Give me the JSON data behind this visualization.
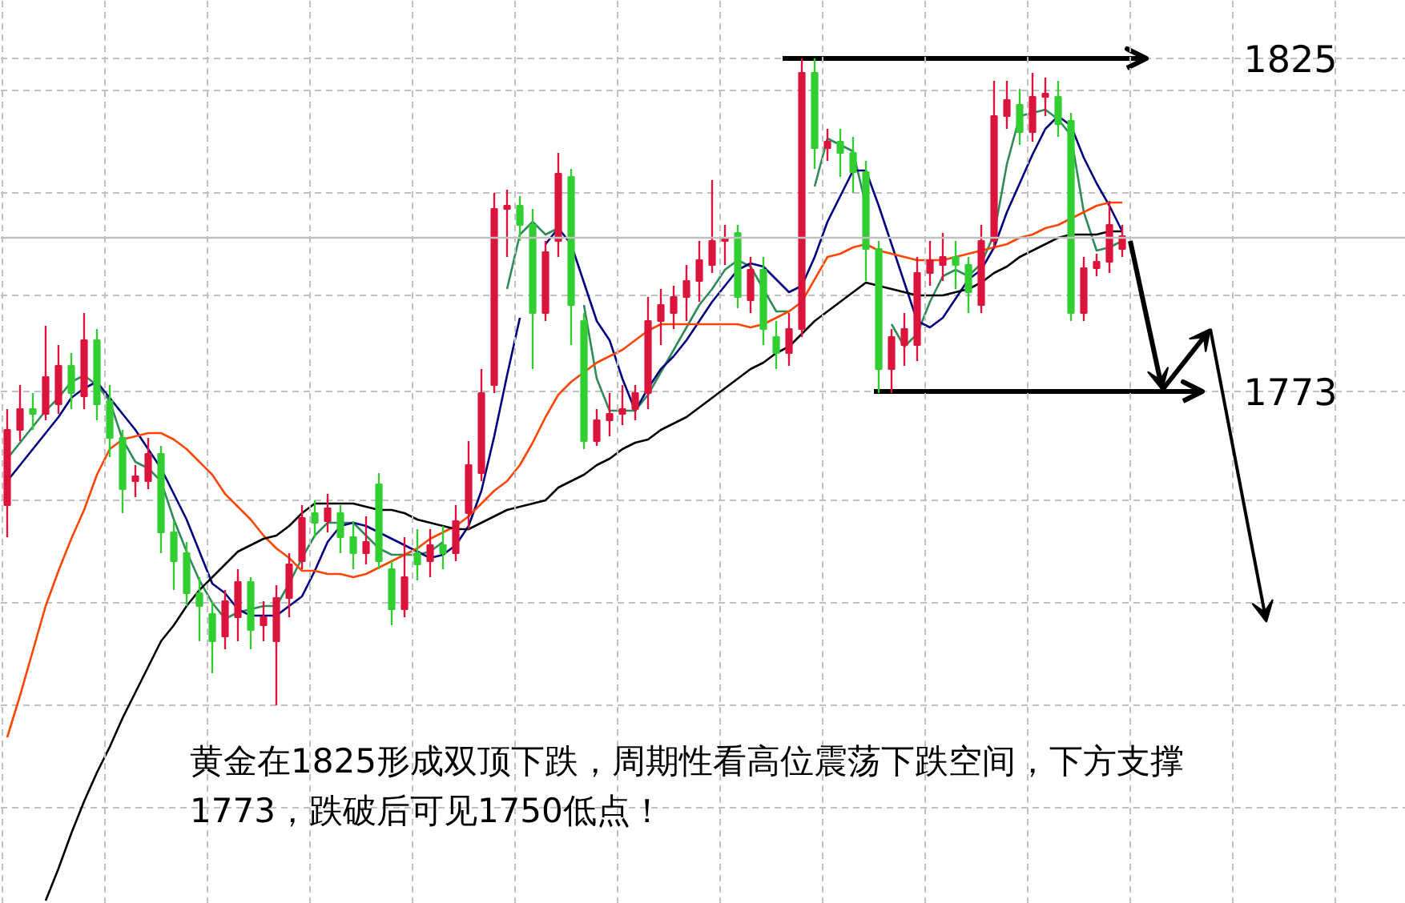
{
  "chart_data": {
    "type": "candlestick",
    "categories": [
      null,
      null,
      null,
      null,
      null,
      null,
      null,
      null,
      null,
      null,
      null,
      null,
      null,
      null,
      null,
      null,
      null,
      null,
      null,
      null,
      null,
      null,
      null,
      null,
      null,
      null,
      null,
      null,
      null,
      null,
      null,
      null,
      null,
      null,
      null,
      null,
      null,
      null,
      null,
      null,
      null,
      null,
      null,
      null,
      null,
      null,
      null,
      null,
      null,
      null,
      null,
      null,
      null,
      null,
      null,
      null,
      null,
      null,
      null,
      null,
      null,
      null,
      null,
      null,
      null,
      null,
      null,
      null,
      null,
      null,
      null,
      null,
      null,
      null,
      null,
      null,
      null,
      null,
      null,
      null,
      null,
      null,
      null,
      null,
      null,
      null,
      null,
      null
    ],
    "ohlc": [
      [
        1755.25,
        1770.25,
        1750.25,
        1767
      ],
      [
        1767,
        1774,
        1765.25,
        1770.25
      ],
      [
        1770.25,
        1772.75,
        1767,
        1769.5
      ],
      [
        1769.5,
        1783.25,
        1768.5,
        1775.25
      ],
      [
        1771,
        1780.25,
        1769.5,
        1777
      ],
      [
        1777,
        1779,
        1770.25,
        1772.75
      ],
      [
        1772.25,
        1785.25,
        1770.25,
        1781
      ],
      [
        1781,
        1782.75,
        1768.5,
        1771
      ],
      [
        1771.5,
        1774,
        1762.75,
        1765.75
      ],
      [
        1765.75,
        1767,
        1754,
        1757.75
      ],
      [
        1759,
        1761.5,
        1756.5,
        1759.75
      ],
      [
        1759,
        1765.75,
        1757.75,
        1763.25
      ],
      [
        1763.25,
        1764.5,
        1747.75,
        1751
      ],
      [
        1751,
        1752.75,
        1742,
        1746.5
      ],
      [
        1747.75,
        1749.5,
        1739.5,
        1741.5
      ],
      [
        1741.5,
        1744,
        1734,
        1739.5
      ],
      [
        1738.25,
        1740.25,
        1729,
        1734
      ],
      [
        1734.75,
        1742,
        1732.75,
        1740.25
      ],
      [
        1737.75,
        1745.25,
        1734,
        1743.25
      ],
      [
        1743.25,
        1744,
        1732.75,
        1735.75
      ],
      [
        1736.5,
        1740.25,
        1734,
        1737.75
      ],
      [
        1734,
        1742.75,
        1724,
        1740.75
      ],
      [
        1740.75,
        1747.75,
        1737.75,
        1746
      ],
      [
        1746.5,
        1755.25,
        1745.25,
        1753.25
      ],
      [
        1754,
        1756,
        1750.25,
        1752.5
      ],
      [
        1752.75,
        1757,
        1751,
        1754.75
      ],
      [
        1754,
        1755.25,
        1747.75,
        1750.25
      ],
      [
        1750.25,
        1752.75,
        1745.25,
        1747.75
      ],
      [
        1747.75,
        1753.5,
        1746,
        1749.5
      ],
      [
        1758.5,
        1760.25,
        1745.25,
        1746.5
      ],
      [
        1745.25,
        1746.5,
        1736.5,
        1739
      ],
      [
        1739,
        1750.25,
        1737.75,
        1744
      ],
      [
        1747.75,
        1751.5,
        1743.5,
        1746
      ],
      [
        1746.5,
        1751.5,
        1744,
        1749
      ],
      [
        1749,
        1752,
        1745.25,
        1747.75
      ],
      [
        1747.75,
        1755.25,
        1746.5,
        1752.75
      ],
      [
        1754,
        1765.25,
        1751.5,
        1761.5
      ],
      [
        1760.25,
        1776.5,
        1759,
        1772.75
      ],
      [
        1774,
        1804,
        1772.75,
        1801.5
      ],
      [
        1801.5,
        1804.5,
        1794,
        1802
      ],
      [
        1802,
        1803.5,
        1796.5,
        1799
      ],
      [
        1799,
        1801.5,
        1776.5,
        1785.25
      ],
      [
        1785.25,
        1796.5,
        1784,
        1794.75
      ],
      [
        1796.5,
        1810.25,
        1794,
        1807
      ],
      [
        1806.5,
        1807.75,
        1780.25,
        1786.5
      ],
      [
        1784,
        1785.25,
        1764,
        1765.25
      ],
      [
        1765.25,
        1770.25,
        1764.5,
        1768.5
      ],
      [
        1768.5,
        1772.75,
        1766,
        1769.5
      ],
      [
        1769.5,
        1774,
        1767.75,
        1770.25
      ],
      [
        1770.25,
        1774,
        1768.5,
        1772.75
      ],
      [
        1772.75,
        1787.75,
        1770.25,
        1784
      ],
      [
        1784,
        1789,
        1780.25,
        1786.5
      ],
      [
        1785.25,
        1789.5,
        1782.75,
        1787.75
      ],
      [
        1787.75,
        1792.75,
        1784,
        1790.25
      ],
      [
        1790.25,
        1796.5,
        1787,
        1793.5
      ],
      [
        1792.75,
        1806,
        1791.5,
        1796.5
      ],
      [
        1796.5,
        1799,
        1792.75,
        1797
      ],
      [
        1797.75,
        1799,
        1786,
        1787.75
      ],
      [
        1787.25,
        1794,
        1785.25,
        1792
      ],
      [
        1792,
        1794,
        1780.25,
        1782.75
      ],
      [
        1781.5,
        1784,
        1776.5,
        1779
      ],
      [
        1779,
        1785.25,
        1777,
        1782.75
      ],
      [
        1782.75,
        1825,
        1781.5,
        1822.75
      ],
      [
        1822.75,
        1825,
        1807.75,
        1811
      ],
      [
        1811,
        1814,
        1809,
        1812
      ],
      [
        1812,
        1814,
        1806.5,
        1810.25
      ],
      [
        1810.25,
        1812.75,
        1804,
        1807.25
      ],
      [
        1807.25,
        1809,
        1790.25,
        1795.25
      ],
      [
        1795.25,
        1796.5,
        1772.75,
        1776.5
      ],
      [
        1776.5,
        1782.75,
        1772.75,
        1781.5
      ],
      [
        1780.25,
        1785.25,
        1777,
        1782.75
      ],
      [
        1780.25,
        1794,
        1777.75,
        1791.5
      ],
      [
        1791.5,
        1796.5,
        1789.5,
        1793.5
      ],
      [
        1792.75,
        1797.75,
        1790.25,
        1794
      ],
      [
        1794,
        1796.5,
        1789,
        1792.75
      ],
      [
        1792.75,
        1794,
        1785.25,
        1788.5
      ],
      [
        1786.5,
        1799,
        1785.25,
        1796.5
      ],
      [
        1796.5,
        1821.5,
        1795.25,
        1816
      ],
      [
        1816,
        1821.5,
        1814,
        1818.5
      ],
      [
        1817.75,
        1820.25,
        1811.5,
        1813.5
      ],
      [
        1813.5,
        1822.75,
        1812,
        1819
      ],
      [
        1819,
        1822,
        1816,
        1819.5
      ],
      [
        1819,
        1821.5,
        1812.75,
        1814.75
      ],
      [
        1815.25,
        1816.5,
        1784,
        1785.25
      ],
      [
        1785.25,
        1794,
        1784,
        1792.25
      ],
      [
        1792.25,
        1794.5,
        1791,
        1793.25
      ],
      [
        1793.25,
        1802.75,
        1791.5,
        1799
      ],
      [
        1795.25,
        1799,
        1794,
        1797.25
      ]
    ],
    "colors": [
      "#dc143c",
      "#dc143c",
      "#32cd32",
      "#dc143c",
      "#dc143c",
      "#32cd32",
      "#dc143c",
      "#32cd32",
      "#32cd32",
      "#32cd32",
      "#dc143c",
      "#dc143c",
      "#32cd32",
      "#32cd32",
      "#32cd32",
      "#32cd32",
      "#32cd32",
      "#dc143c",
      "#dc143c",
      "#32cd32",
      "#dc143c",
      "#dc143c",
      "#dc143c",
      "#dc143c",
      "#32cd32",
      "#dc143c",
      "#32cd32",
      "#32cd32",
      "#dc143c",
      "#32cd32",
      "#32cd32",
      "#dc143c",
      "#32cd32",
      "#dc143c",
      "#32cd32",
      "#dc143c",
      "#dc143c",
      "#dc143c",
      "#dc143c",
      "#dc143c",
      "#32cd32",
      "#32cd32",
      "#dc143c",
      "#dc143c",
      "#32cd32",
      "#32cd32",
      "#dc143c",
      "#dc143c",
      "#dc143c",
      "#dc143c",
      "#dc143c",
      "#dc143c",
      "#dc143c",
      "#dc143c",
      "#dc143c",
      "#dc143c",
      "#dc143c",
      "#32cd32",
      "#dc143c",
      "#32cd32",
      "#32cd32",
      "#dc143c",
      "#dc143c",
      "#32cd32",
      "#dc143c",
      "#32cd32",
      "#32cd32",
      "#32cd32",
      "#32cd32",
      "#dc143c",
      "#dc143c",
      "#dc143c",
      "#dc143c",
      "#dc143c",
      "#32cd32",
      "#32cd32",
      "#dc143c",
      "#dc143c",
      "#dc143c",
      "#32cd32",
      "#dc143c",
      "#dc143c",
      "#32cd32",
      "#32cd32",
      "#dc143c",
      "#dc143c",
      "#dc143c",
      "#dc143c"
    ],
    "series": [
      {
        "type": "line",
        "color": "#2e8b57",
        "values": [
          1762.5,
          1765,
          1767.5,
          1770,
          1772,
          1774.5,
          1775.5,
          1774,
          1771.5,
          1765.5,
          1762,
          1761,
          1759,
          1753,
          1748,
          1743.5,
          1740,
          1737.5,
          1738.5,
          1739,
          1739.5,
          1739.5,
          1743,
          1747,
          1750.5,
          1752.5,
          1752.5,
          1752.5,
          1750.5,
          1748.5,
          1747.5,
          1747.5,
          1747.5,
          1748,
          1749.5,
          null,
          null,
          null,
          null,
          1789,
          1797.5,
          1799.5,
          1797.5,
          1798.5,
          null,
          1786.5,
          1775,
          1770,
          1770,
          1770,
          1772.5,
          1776,
          1779.5,
          1783,
          1786.5,
          1789,
          1792,
          1793.5,
          1792.5,
          1789,
          1785.5,
          1785.5,
          null,
          1805,
          1812.5,
          1811.5,
          1810.5,
          1802,
          null,
          1783.5,
          1780,
          1782,
          1787,
          1791,
          1792,
          1791,
          1793,
          1797.5,
          1808.5,
          1816,
          1816.5,
          1817,
          1815.5,
          1813,
          1801,
          1795,
          1795.5,
          1796.5
        ]
      },
      {
        "type": "line",
        "color": "#000080",
        "values": [
          1759,
          1761.5,
          1764,
          1766.5,
          1769,
          1772,
          1773.5,
          1774.5,
          1772,
          1769.5,
          1767,
          1764,
          1761,
          1757,
          1753,
          1748,
          1743,
          1741.5,
          1739,
          1738,
          1738,
          1738,
          1739.5,
          1741,
          1745,
          1749.5,
          1752,
          1752.5,
          1752,
          1751,
          1750,
          1749,
          1748,
          1747,
          1747.5,
          1749,
          1752,
          1757.5,
          1766,
          1775.5,
          1784.5,
          null,
          1796,
          1798.5,
          1796,
          1790,
          1784,
          1781,
          1775,
          1770,
          1773.5,
          1776.5,
          1778.5,
          1781,
          1784,
          1787,
          1789.5,
          1792,
          1793,
          1792.5,
          1790.5,
          1788.5,
          1789.5,
          1794,
          1799.5,
          1803.5,
          1807.5,
          1807.5,
          1802,
          1796,
          1790,
          1784,
          1783,
          1784.5,
          1787.5,
          1790.5,
          1792,
          1795.5,
          1801,
          1805.5,
          1810,
          1814,
          1816,
          1814.5,
          1809.5,
          1805.5,
          1802,
          1798
        ]
      },
      {
        "type": "line",
        "color": "#ff4500",
        "values": [
          1719,
          1725.5,
          1732.5,
          1739.5,
          1745,
          1750,
          1754.5,
          1760,
          1764,
          1765.5,
          1766,
          1766.5,
          1766.5,
          1765.5,
          1764,
          1762,
          1760,
          1757,
          1755,
          1753,
          1750.5,
          1748.5,
          1747,
          1745,
          1745,
          1744.5,
          1744.5,
          1744,
          1744.5,
          1745.5,
          1746.5,
          1747.5,
          1748.5,
          1750,
          1751,
          1752,
          1753.5,
          1755.5,
          1757.5,
          1759,
          1761.5,
          1765,
          1769,
          1772.5,
          1774.5,
          1776,
          1777.5,
          1778.5,
          1779.5,
          1781,
          1782.5,
          1783.5,
          1783.5,
          1783.5,
          1783.5,
          1783.5,
          1783.5,
          1783.5,
          1783,
          1783.5,
          1784.5,
          1785.5,
          1787,
          1790.5,
          1794,
          1794.5,
          1795.5,
          1796,
          1795,
          1794.5,
          1794,
          1793.5,
          1793.5,
          1793.5,
          1794,
          1794.5,
          1795,
          1795.5,
          1796,
          1797,
          1797.5,
          1798.5,
          1799,
          1800,
          1801,
          1802,
          1802.5,
          1802.5
        ]
      },
      {
        "type": "line",
        "color": "#000000",
        "values": [
          null,
          null,
          null,
          1693.5,
          1698.5,
          1704,
          1709,
          1713.5,
          1717.5,
          1722,
          1726,
          1730,
          1734,
          1736.5,
          1739.5,
          1742,
          1744,
          1746,
          1748,
          1749,
          1750,
          1750.5,
          1752,
          1754,
          1755.5,
          1755.5,
          1755.5,
          1755.5,
          1755,
          1754.5,
          1754.5,
          1754,
          1753,
          1752.5,
          1752,
          1751.5,
          1751.5,
          1752.5,
          1753.5,
          1754.5,
          1755,
          1755.5,
          1756,
          1758,
          1759,
          1760,
          1761.5,
          1762.5,
          1764,
          1765,
          1765.5,
          1767,
          1768,
          1769,
          1770.5,
          1772,
          1773.5,
          1775,
          1776.5,
          1777.5,
          1779,
          1780,
          1782,
          1784,
          1785.5,
          1787,
          1788.5,
          1790,
          1789.5,
          1789,
          1788.5,
          1788,
          1788,
          1788,
          1788.5,
          1789,
          1790,
          1791.5,
          1792.5,
          1794,
          1795,
          1796,
          1797,
          1797.5,
          1797.5,
          1797.5,
          1798,
          1798
        ]
      }
    ],
    "ref_lines": [
      {
        "axis": "y",
        "value": 1797,
        "color": "#c0c0c0",
        "line_style": "solid"
      },
      {
        "axis": "y",
        "value": 1825,
        "color": "#000000",
        "line_style": "solid"
      },
      {
        "axis": "y",
        "value": 1773,
        "color": "#000000",
        "line_style": "solid"
      }
    ],
    "annotations": [
      "黄金在1825形成双顶下跌，周期性看高位震荡下跌空间，下方支撑1773，跌破后可见1750低点！"
    ],
    "ylim": [
      1693,
      1834
    ],
    "yticks": [
      1825,
      1773,
      {
        "value": 1820,
        "label": null
      },
      {
        "value": 1804,
        "label": null
      },
      {
        "value": 1788,
        "label": null
      },
      {
        "value": 1756,
        "label": null
      },
      {
        "value": 1740,
        "label": null
      },
      {
        "value": 1724,
        "label": null
      },
      {
        "value": 1708,
        "label": null
      }
    ],
    "grid": true
  }
}
